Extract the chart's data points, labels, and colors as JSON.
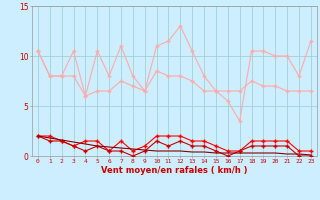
{
  "x": [
    0,
    1,
    2,
    3,
    4,
    5,
    6,
    7,
    8,
    9,
    10,
    11,
    12,
    13,
    14,
    15,
    16,
    17,
    18,
    19,
    20,
    21,
    22,
    23
  ],
  "rafales": [
    10.5,
    8.0,
    8.0,
    10.5,
    6.0,
    10.5,
    8.0,
    11.0,
    8.0,
    6.5,
    11.0,
    11.5,
    13.0,
    10.5,
    8.0,
    6.5,
    5.5,
    3.5,
    10.5,
    10.5,
    10.0,
    10.0,
    8.0,
    11.5
  ],
  "vent_max": [
    10.5,
    8.0,
    8.0,
    8.0,
    6.0,
    6.5,
    6.5,
    7.5,
    7.0,
    6.5,
    8.5,
    8.0,
    8.0,
    7.5,
    6.5,
    6.5,
    6.5,
    6.5,
    7.5,
    7.0,
    7.0,
    6.5,
    6.5,
    6.5
  ],
  "vent_moy": [
    2.0,
    2.0,
    1.5,
    1.0,
    1.5,
    1.5,
    0.5,
    1.5,
    0.5,
    1.0,
    2.0,
    2.0,
    2.0,
    1.5,
    1.5,
    1.0,
    0.5,
    0.5,
    1.5,
    1.5,
    1.5,
    1.5,
    0.5,
    0.5
  ],
  "vent_min": [
    2.0,
    1.5,
    1.5,
    1.0,
    0.5,
    1.0,
    0.5,
    0.5,
    0.0,
    0.5,
    1.5,
    1.0,
    1.5,
    1.0,
    1.0,
    0.5,
    0.0,
    0.5,
    1.0,
    1.0,
    1.0,
    1.0,
    0.0,
    0.0
  ],
  "vent_tend": [
    2.0,
    1.8,
    1.6,
    1.4,
    1.2,
    1.0,
    0.9,
    0.8,
    0.7,
    0.6,
    0.5,
    0.5,
    0.5,
    0.4,
    0.4,
    0.3,
    0.3,
    0.3,
    0.3,
    0.3,
    0.3,
    0.2,
    0.2,
    0.1
  ],
  "bg_color": "#cceeff",
  "grid_color": "#99cccc",
  "color_rafales": "#ffaaaa",
  "color_vent_max": "#ffaaaa",
  "color_vent_moy": "#ff0000",
  "color_vent_min": "#cc0000",
  "color_tend": "#880000",
  "xlabel": "Vent moyen/en rafales ( km/h )",
  "ylim": [
    0,
    15
  ],
  "yticks": [
    0,
    5,
    10,
    15
  ]
}
